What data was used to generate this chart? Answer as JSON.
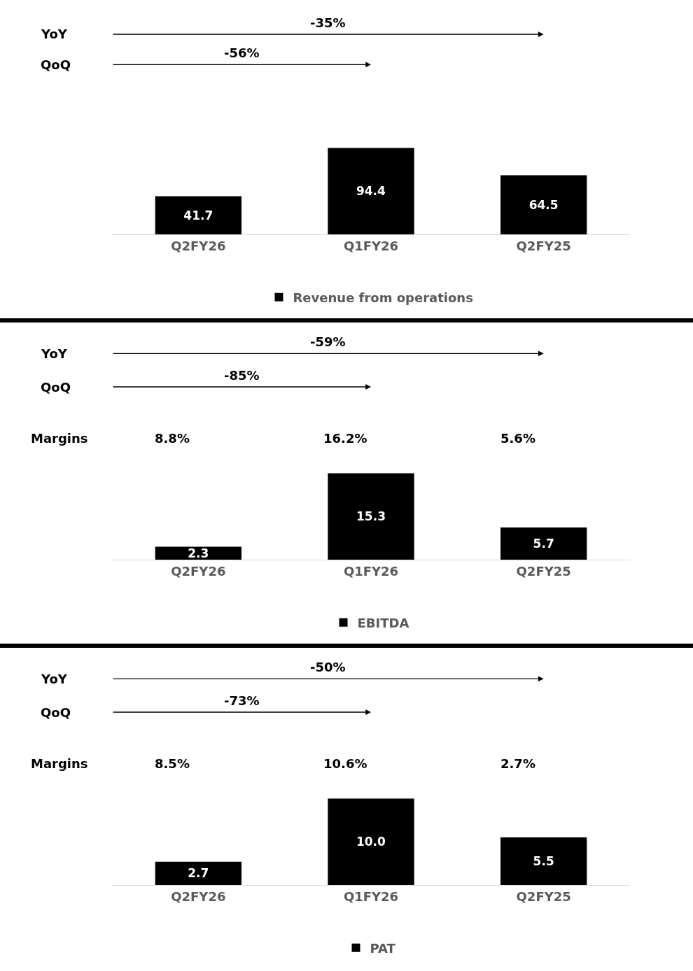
{
  "chart_data": [
    {
      "type": "bar",
      "categories": [
        "Q2FY26",
        "Q1FY26",
        "Q2FY25"
      ],
      "series": [
        {
          "name": "Revenue from operations",
          "color": "#000000",
          "values": [
            41.7,
            94.4,
            64.5
          ],
          "value_labels": [
            "41.7",
            "94.4",
            "64.5"
          ]
        }
      ],
      "legend": "bottom",
      "grid": false,
      "annotations": [
        "YoY",
        "-35%",
        "QoQ",
        "-56%"
      ]
    },
    {
      "type": "bar",
      "categories": [
        "Q2FY26",
        "Q1FY26",
        "Q2FY25"
      ],
      "series": [
        {
          "name": "EBITDA",
          "color": "#000000",
          "values": [
            2.3,
            15.3,
            5.7
          ],
          "value_labels": [
            "2.3",
            "15.3",
            "5.7"
          ]
        }
      ],
      "legend": "bottom",
      "grid": false,
      "annotations": [
        "YoY",
        "-59%",
        "QoQ",
        "-85%",
        "Margins",
        "8.8%",
        "16.2%",
        "5.6%"
      ]
    },
    {
      "type": "bar",
      "categories": [
        "Q2FY26",
        "Q1FY26",
        "Q2FY25"
      ],
      "series": [
        {
          "name": "PAT",
          "color": "#000000",
          "values": [
            2.7,
            10.0,
            5.5
          ],
          "value_labels": [
            "2.7",
            "10.0",
            "5.5"
          ]
        }
      ],
      "legend": "bottom",
      "grid": false,
      "annotations": [
        "YoY",
        "-50%",
        "QoQ",
        "-73%",
        "Margins",
        "8.5%",
        "10.6%",
        "2.7%"
      ]
    }
  ]
}
